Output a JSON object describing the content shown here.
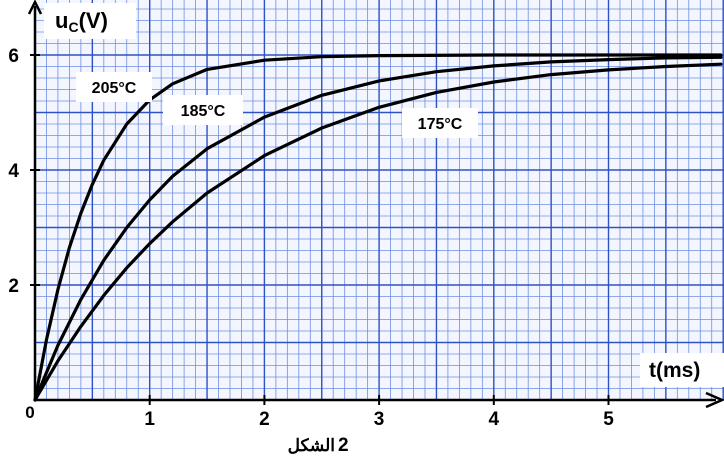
{
  "chart_data": {
    "type": "line",
    "ylabel": "u",
    "ylabel_sub": "C",
    "ylabel_unit": "(V)",
    "xlabel": "t(ms)",
    "caption_text": "الشكل",
    "caption_number": "2",
    "origin_label": "0",
    "xlim": [
      0,
      5.98
    ],
    "ylim": [
      0,
      6.85
    ],
    "x_ticks": [
      {
        "value": 1,
        "label": "1"
      },
      {
        "value": 2,
        "label": "2"
      },
      {
        "value": 3,
        "label": "3"
      },
      {
        "value": 4,
        "label": "4"
      },
      {
        "value": 5,
        "label": "5"
      }
    ],
    "y_ticks": [
      {
        "value": 2,
        "label": "2"
      },
      {
        "value": 4,
        "label": "4"
      },
      {
        "value": 6,
        "label": "6"
      }
    ],
    "grid": true,
    "grid_color": "#6f8fe0",
    "major_grid_color": "#2e52c2",
    "curve_color": "#000000",
    "series": [
      {
        "name": "205°C",
        "x": [
          0,
          0.1,
          0.2,
          0.3,
          0.4,
          0.5,
          0.6,
          0.8,
          1.0,
          1.2,
          1.5,
          2.0,
          2.5,
          3.0,
          4.0,
          5.0,
          5.98
        ],
        "y": [
          0,
          1.05,
          1.92,
          2.65,
          3.25,
          3.75,
          4.17,
          4.8,
          5.22,
          5.5,
          5.75,
          5.91,
          5.97,
          5.99,
          6.0,
          6.0,
          6.0
        ]
      },
      {
        "name": "185°C",
        "x": [
          0,
          0.2,
          0.4,
          0.6,
          0.8,
          1.0,
          1.2,
          1.5,
          2.0,
          2.5,
          3.0,
          3.5,
          4.0,
          4.5,
          5.0,
          5.5,
          5.98
        ],
        "y": [
          0,
          0.95,
          1.75,
          2.43,
          3.0,
          3.48,
          3.89,
          4.37,
          4.92,
          5.3,
          5.55,
          5.71,
          5.81,
          5.88,
          5.92,
          5.95,
          5.96
        ]
      },
      {
        "name": "175°C",
        "x": [
          0,
          0.2,
          0.4,
          0.6,
          0.8,
          1.0,
          1.2,
          1.5,
          2.0,
          2.5,
          3.0,
          3.5,
          4.0,
          4.5,
          5.0,
          5.5,
          5.98
        ],
        "y": [
          0,
          0.68,
          1.28,
          1.82,
          2.3,
          2.72,
          3.1,
          3.6,
          4.25,
          4.73,
          5.09,
          5.35,
          5.53,
          5.66,
          5.74,
          5.8,
          5.84
        ]
      }
    ],
    "series_label_boxes": [
      {
        "series": 0,
        "text": "205°C"
      },
      {
        "series": 1,
        "text": "185°C"
      },
      {
        "series": 2,
        "text": "175°C"
      }
    ]
  }
}
